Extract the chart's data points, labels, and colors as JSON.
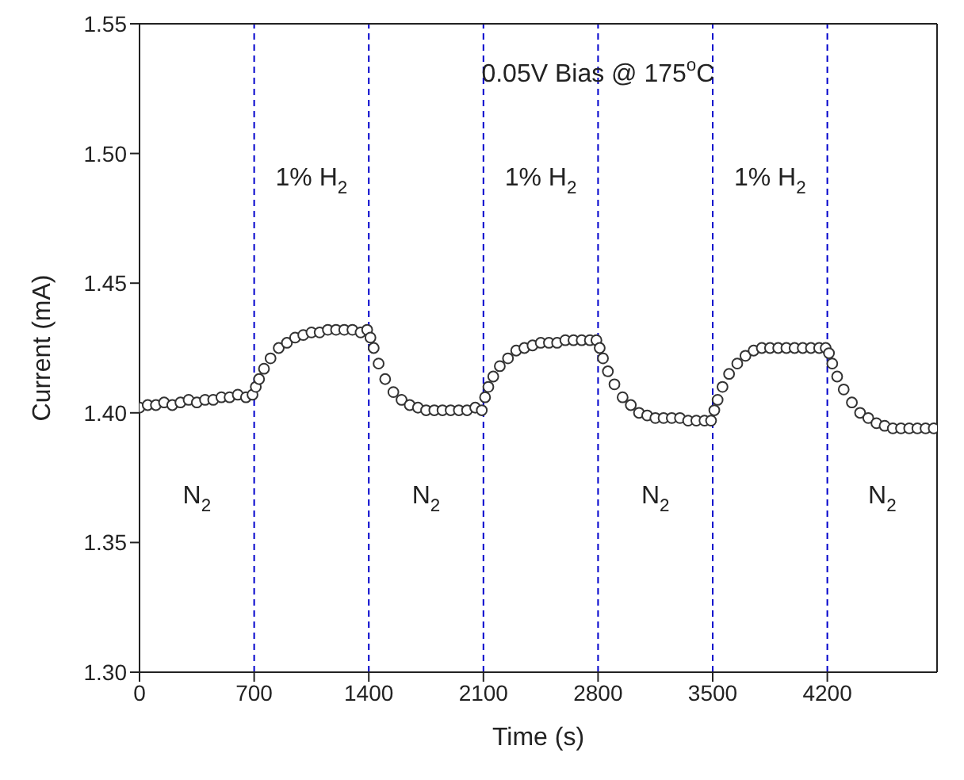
{
  "chart_data": {
    "type": "scatter",
    "xlabel": "Time (s)",
    "ylabel": "Current (mA)",
    "marker": "circle",
    "xlim": [
      0,
      4870
    ],
    "xticks": [
      0,
      700,
      1400,
      2100,
      2800,
      3500,
      4200
    ],
    "ylim": [
      1.3,
      1.55
    ],
    "yticks": [
      {
        "value": 1.3,
        "label": "1.30"
      },
      {
        "value": 1.35,
        "label": "1.35"
      },
      {
        "value": 1.4,
        "label": "1.40"
      },
      {
        "value": 1.45,
        "label": "1.45"
      },
      {
        "value": 1.5,
        "label": "1.50"
      },
      {
        "value": 1.55,
        "label": "1.55"
      }
    ],
    "ref_lines": [
      {
        "axis": "x",
        "value": 700,
        "color": "#0000cc",
        "line_style": "dashed"
      },
      {
        "axis": "x",
        "value": 1400,
        "color": "#0000cc",
        "line_style": "dashed"
      },
      {
        "axis": "x",
        "value": 2100,
        "color": "#0000cc",
        "line_style": "dashed"
      },
      {
        "axis": "x",
        "value": 2800,
        "color": "#0000cc",
        "line_style": "dashed"
      },
      {
        "axis": "x",
        "value": 3500,
        "color": "#0000cc",
        "line_style": "dashed"
      },
      {
        "axis": "x",
        "value": 4200,
        "color": "#0000cc",
        "line_style": "dashed"
      }
    ],
    "annotations": [
      "0.05V Bias @ 175$^{o}$C",
      "1% H$_{2}$",
      "1% H$_{2}$",
      "1% H$_{2}$",
      "N$_{2}$",
      "N$_{2}$",
      "N$_{2}$",
      "N$_{2}$"
    ],
    "series": [
      {
        "color": "#333333",
        "x": [
          0,
          50,
          100,
          150,
          200,
          250,
          300,
          350,
          400,
          450,
          500,
          550,
          600,
          650,
          690,
          710,
          730,
          760,
          800,
          850,
          900,
          950,
          1000,
          1050,
          1100,
          1150,
          1200,
          1250,
          1300,
          1350,
          1390,
          1410,
          1430,
          1460,
          1500,
          1550,
          1600,
          1650,
          1700,
          1750,
          1800,
          1850,
          1900,
          1950,
          2000,
          2050,
          2090,
          2110,
          2130,
          2160,
          2200,
          2250,
          2300,
          2350,
          2400,
          2450,
          2500,
          2550,
          2600,
          2650,
          2700,
          2750,
          2790,
          2810,
          2830,
          2860,
          2900,
          2950,
          3000,
          3050,
          3100,
          3150,
          3200,
          3250,
          3300,
          3350,
          3400,
          3450,
          3490,
          3510,
          3530,
          3560,
          3600,
          3650,
          3700,
          3750,
          3800,
          3850,
          3900,
          3950,
          4000,
          4050,
          4100,
          4150,
          4190,
          4210,
          4230,
          4260,
          4300,
          4350,
          4400,
          4450,
          4500,
          4550,
          4600,
          4650,
          4700,
          4750,
          4800,
          4850
        ],
        "values": [
          1.402,
          1.403,
          1.403,
          1.404,
          1.403,
          1.404,
          1.405,
          1.404,
          1.405,
          1.405,
          1.406,
          1.406,
          1.407,
          1.406,
          1.407,
          1.41,
          1.413,
          1.417,
          1.421,
          1.425,
          1.427,
          1.429,
          1.43,
          1.431,
          1.431,
          1.432,
          1.432,
          1.432,
          1.432,
          1.431,
          1.432,
          1.429,
          1.425,
          1.419,
          1.413,
          1.408,
          1.405,
          1.403,
          1.402,
          1.401,
          1.401,
          1.401,
          1.401,
          1.401,
          1.401,
          1.402,
          1.401,
          1.406,
          1.41,
          1.414,
          1.418,
          1.421,
          1.424,
          1.425,
          1.426,
          1.427,
          1.427,
          1.427,
          1.428,
          1.428,
          1.428,
          1.428,
          1.428,
          1.425,
          1.421,
          1.416,
          1.411,
          1.406,
          1.403,
          1.4,
          1.399,
          1.398,
          1.398,
          1.398,
          1.398,
          1.397,
          1.397,
          1.397,
          1.397,
          1.401,
          1.405,
          1.41,
          1.415,
          1.419,
          1.422,
          1.424,
          1.425,
          1.425,
          1.425,
          1.425,
          1.425,
          1.425,
          1.425,
          1.425,
          1.425,
          1.423,
          1.419,
          1.414,
          1.409,
          1.404,
          1.4,
          1.398,
          1.396,
          1.395,
          1.394,
          1.394,
          1.394,
          1.394,
          1.394,
          1.394
        ]
      }
    ]
  }
}
